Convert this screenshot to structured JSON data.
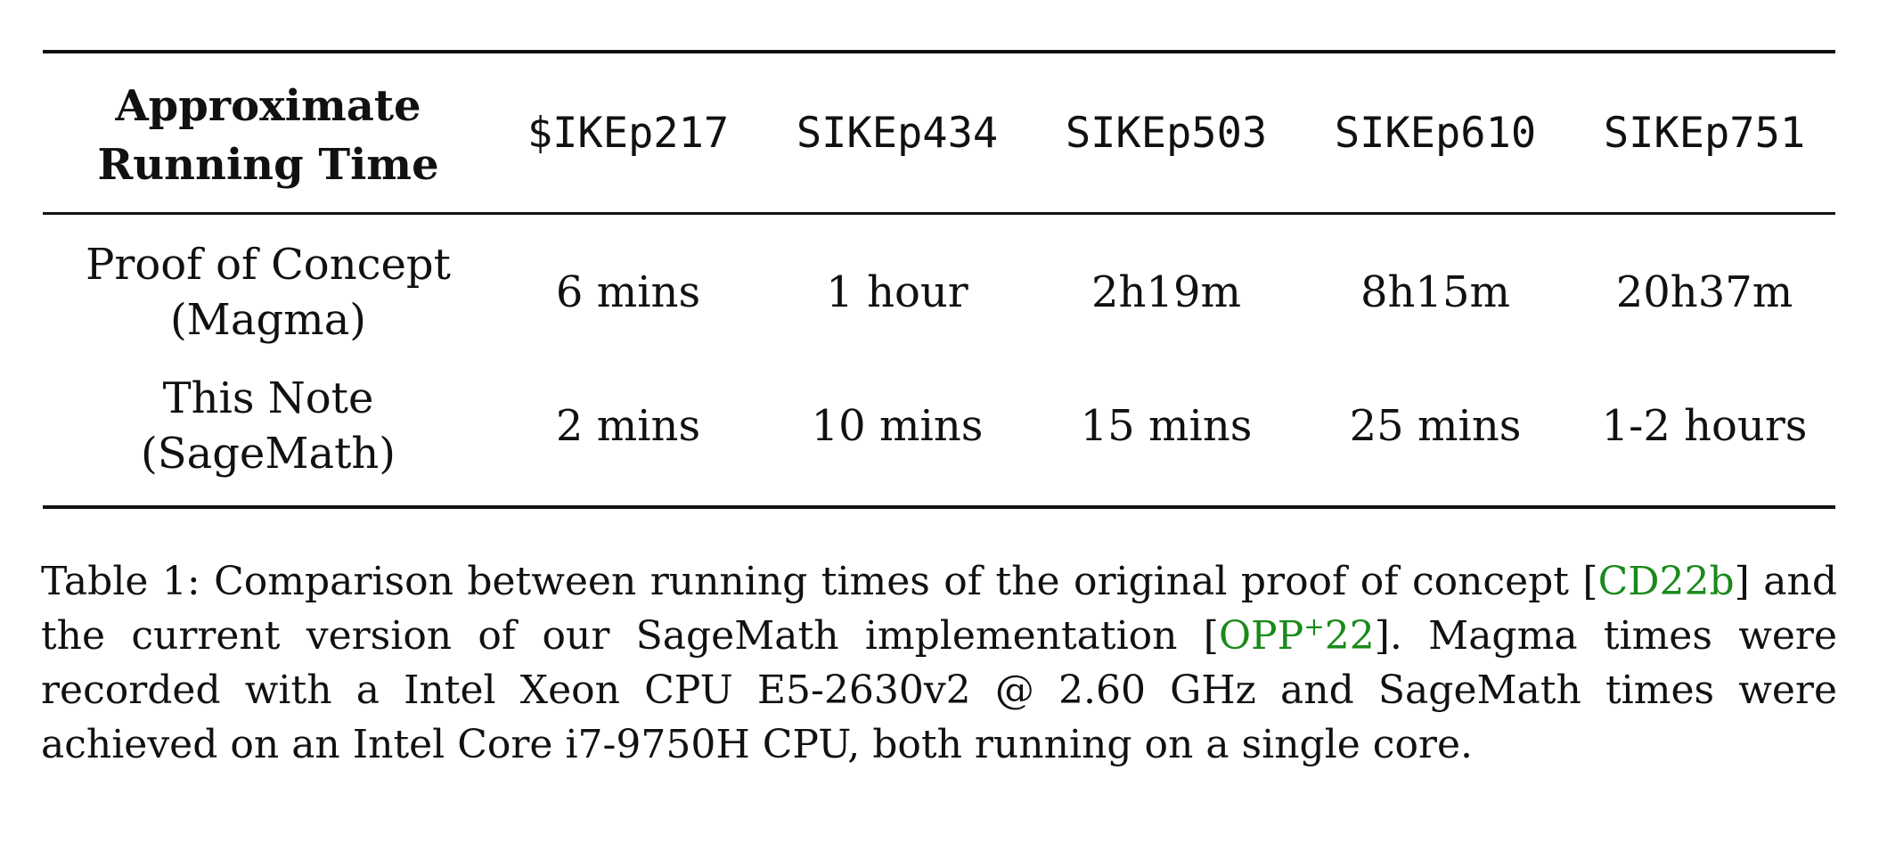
{
  "table": {
    "header_label_line1": "Approximate",
    "header_label_line2": "Running Time",
    "columns": [
      "$IKEp217",
      "SIKEp434",
      "SIKEp503",
      "SIKEp610",
      "SIKEp751"
    ],
    "rows": [
      {
        "label_line1": "Proof of Concept",
        "label_line2": "(Magma)",
        "values": [
          "6 mins",
          "1 hour",
          "2h19m",
          "8h15m",
          "20h37m"
        ]
      },
      {
        "label_line1": "This Note",
        "label_line2": "(SageMath)",
        "values": [
          "2 mins",
          "10 mins",
          "15 mins",
          "25 mins",
          "1-2 hours"
        ]
      }
    ]
  },
  "caption": {
    "part1": "Table 1: Comparison between running times of the original proof of concept [",
    "cite1": "CD22b",
    "part2": "] and the current version of our SageMath implementation [",
    "cite2_main": "OPP",
    "cite2_sup": "+",
    "cite2_tail": "22",
    "part3": "]. Magma times were recorded with a Intel Xeon CPU E5-2630v2 @ 2.60 GHz and SageMath times were achieved on an Intel Core i7-9750H CPU, both running on a single core."
  },
  "colors": {
    "citation": "#1a8a1a",
    "text": "#111111",
    "rules": "#111111"
  }
}
